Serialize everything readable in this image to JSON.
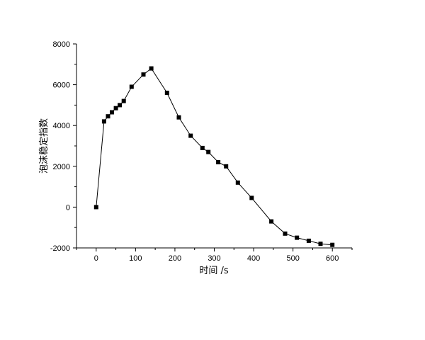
{
  "chart_data": {
    "type": "line",
    "title": "",
    "xlabel": "时间 /s",
    "ylabel": "泡沫稳定指数",
    "xlim": [
      -50,
      650
    ],
    "ylim": [
      -2000,
      8000
    ],
    "x_ticks": [
      0,
      100,
      200,
      300,
      400,
      500,
      600
    ],
    "y_ticks": [
      -2000,
      0,
      2000,
      4000,
      6000,
      8000
    ],
    "grid": false,
    "legend": "none",
    "marker": "square",
    "line_color": "#000000",
    "series": [
      {
        "x": [
          0,
          20,
          30,
          40,
          50,
          60,
          70,
          90,
          120,
          140,
          180,
          210,
          240,
          270,
          285,
          310,
          330,
          360,
          395,
          445,
          480,
          510,
          540,
          570,
          600
        ],
        "y": [
          0,
          4200,
          4450,
          4650,
          4850,
          5000,
          5200,
          5900,
          6500,
          6800,
          5600,
          4400,
          3500,
          2900,
          2700,
          2200,
          2000,
          1200,
          450,
          -700,
          -1300,
          -1500,
          -1650,
          -1800,
          -1850
        ]
      }
    ]
  }
}
